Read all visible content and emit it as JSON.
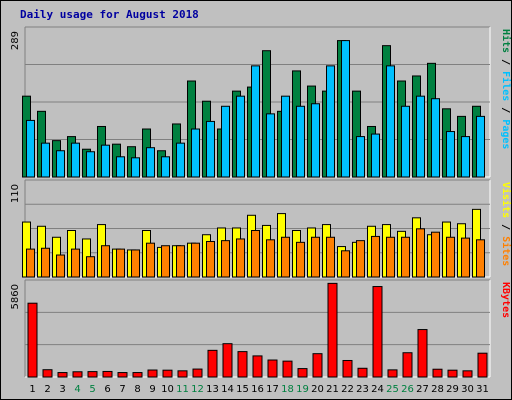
{
  "chart_data": {
    "type": "bar",
    "title": "Daily usage for August 2018",
    "days": [
      "1",
      "2",
      "3",
      "4",
      "5",
      "6",
      "7",
      "8",
      "9",
      "10",
      "11",
      "12",
      "13",
      "14",
      "15",
      "16",
      "17",
      "18",
      "19",
      "20",
      "21",
      "22",
      "23",
      "24",
      "25",
      "26",
      "27",
      "28",
      "29",
      "30",
      "31"
    ],
    "weekend_days": [
      "4",
      "5",
      "11",
      "12",
      "18",
      "19",
      "25",
      "26"
    ],
    "colors": {
      "hits": "#008040",
      "files": "#00c0ff",
      "visits": "#ffff00",
      "sites": "#ff8000",
      "kbytes": "#ff0000",
      "title": "#0000a0",
      "weekend": "#008040"
    },
    "panels": {
      "top": {
        "max_label": "289",
        "ymax": 289,
        "series": [
          {
            "name": "Hits",
            "values": [
              160,
              130,
              72,
              80,
              55,
              100,
              65,
              60,
              95,
              52,
              105,
              190,
              150,
              95,
              170,
              178,
              250,
              130,
              210,
              180,
              170,
              270,
              170,
              100,
              260,
              190,
              200,
              225,
              135,
              120,
              140
            ]
          },
          {
            "name": "Files",
            "values": [
              112,
              67,
              52,
              67,
              50,
              63,
              40,
              38,
              58,
              40,
              67,
              95,
              110,
              140,
              160,
              220,
              125,
              160,
              140,
              145,
              220,
              270,
              80,
              85,
              220,
              140,
              160,
              155,
              90,
              80,
              120
            ]
          },
          {
            "name": "Pages",
            "values": [
              0,
              0,
              0,
              0,
              0,
              0,
              0,
              0,
              0,
              0,
              0,
              0,
              0,
              0,
              0,
              0,
              0,
              0,
              0,
              0,
              0,
              0,
              0,
              0,
              0,
              0,
              0,
              0,
              0,
              0,
              0
            ]
          }
        ],
        "labels": [
          {
            "text": "Hits",
            "color": "#008040"
          },
          {
            "text": " / ",
            "color": "#000000"
          },
          {
            "text": "Files",
            "color": "#00c0ff"
          },
          {
            "text": " / ",
            "color": "#000000"
          },
          {
            "text": "Pages",
            "color": "#00c0ff"
          }
        ]
      },
      "middle": {
        "max_label": "110",
        "ymax": 110,
        "series": [
          {
            "name": "Visits",
            "values": [
              65,
              60,
              47,
              55,
              45,
              62,
              33,
              32,
              55,
              35,
              37,
              40,
              50,
              58,
              58,
              73,
              61,
              75,
              55,
              58,
              62,
              36,
              41,
              60,
              62,
              54,
              70,
              50,
              65,
              63,
              80
            ]
          },
          {
            "name": "Sites",
            "values": [
              33,
              34,
              26,
              33,
              24,
              37,
              33,
              32,
              40,
              37,
              37,
              40,
              42,
              43,
              45,
              55,
              44,
              47,
              41,
              47,
              47,
              31,
              43,
              48,
              47,
              47,
              57,
              53,
              47,
              46,
              44
            ]
          }
        ],
        "labels": [
          {
            "text": "Visits",
            "color": "#ffff00"
          },
          {
            "text": " / ",
            "color": "#000000"
          },
          {
            "text": "Sites",
            "color": "#ff8000"
          }
        ]
      },
      "bottom": {
        "max_label": "5860",
        "ymax": 5860,
        "series": [
          {
            "name": "KBytes",
            "values": [
              4650,
              460,
              280,
              330,
              340,
              350,
              280,
              280,
              440,
              430,
              390,
              500,
              1680,
              2100,
              1600,
              1330,
              1070,
              1000,
              530,
              1470,
              5900,
              1040,
              550,
              5700,
              450,
              1530,
              2990,
              490,
              430,
              390,
              1500
            ]
          }
        ],
        "labels": [
          {
            "text": "KBytes",
            "color": "#ff0000"
          }
        ]
      }
    }
  }
}
